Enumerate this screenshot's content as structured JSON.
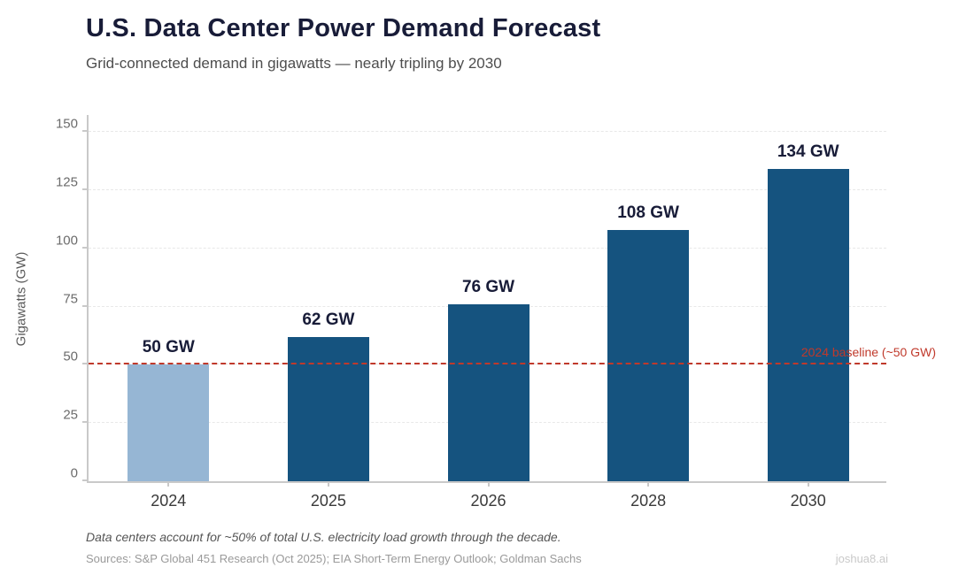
{
  "header": {
    "title": "U.S. Data Center Power Demand Forecast",
    "subtitle": "Grid-connected demand in gigawatts — nearly tripling by 2030"
  },
  "chart_data": {
    "type": "bar",
    "categories": [
      "2024",
      "2025",
      "2026",
      "2028",
      "2030"
    ],
    "values": [
      50,
      62,
      76,
      108,
      134
    ],
    "bar_labels": [
      "50 GW",
      "62 GW",
      "76 GW",
      "108 GW",
      "134 GW"
    ],
    "title": "U.S. Data Center Power Demand Forecast",
    "xlabel": "",
    "ylabel": "Gigawatts (GW)",
    "ylim": [
      0,
      158
    ],
    "yticks": [
      0,
      25,
      50,
      75,
      100,
      125,
      150
    ],
    "grid": "horizontal-dashed",
    "legend": "none",
    "baseline": {
      "value": 50,
      "label": "2024 baseline (~50 GW)"
    },
    "colors": {
      "bar_default": "#15537f",
      "bar_highlight": "#96b6d4",
      "baseline": "#c0392b",
      "value_label": "#181c38"
    },
    "bar_colors": [
      "#96b6d4",
      "#15537f",
      "#15537f",
      "#15537f",
      "#15537f"
    ]
  },
  "footer": {
    "note": "Data centers account for ~50% of total U.S. electricity load growth through the decade.",
    "sources": "Sources: S&P Global 451 Research (Oct 2025); EIA Short-Term Energy Outlook; Goldman Sachs",
    "watermark": "joshua8.ai"
  }
}
